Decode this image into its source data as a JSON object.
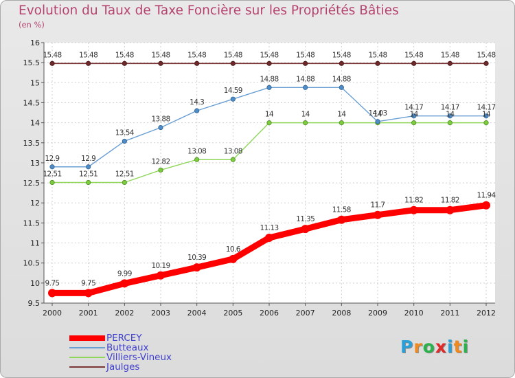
{
  "title": "Evolution du Taux de Taxe Foncière sur les Propriétés Bâties",
  "unit_label": "(en %)",
  "logo": {
    "letters": [
      "P",
      "r",
      "o",
      "x",
      "i",
      "t",
      "i"
    ],
    "colors": [
      "#2a9fd8",
      "#f08a1e",
      "#2bb24c",
      "#e02a2a",
      "#2a9fd8",
      "#f08a1e",
      "#2bb24c"
    ]
  },
  "chart_data": {
    "type": "line",
    "title": "Evolution du Taux de Taxe Foncière sur les Propriétés Bâties",
    "ylabel": "(en %)",
    "xlabel": "",
    "x": [
      "2000",
      "2001",
      "2002",
      "2003",
      "2004",
      "2005",
      "2006",
      "2007",
      "2008",
      "2009",
      "2010",
      "2011",
      "2012"
    ],
    "ylim": [
      9.5,
      16
    ],
    "yticks": [
      "9.5",
      "10",
      "10.5",
      "11",
      "11.5",
      "12",
      "12.5",
      "13",
      "13.5",
      "14",
      "14.5",
      "15",
      "15.5",
      "16"
    ],
    "grid": true,
    "legend_position": "bottom-left",
    "series": [
      {
        "name": "PERCEY",
        "color": "#ff0000",
        "values": [
          9.75,
          9.75,
          9.99,
          10.19,
          10.39,
          10.6,
          11.13,
          11.35,
          11.58,
          11.7,
          11.82,
          11.82,
          11.94
        ],
        "labels": [
          "9.75",
          "9.75",
          "9.99",
          "10.19",
          "10.39",
          "10.6",
          "11.13",
          "11.35",
          "11.58",
          "11.7",
          "11.82",
          "11.82",
          "11.94"
        ]
      },
      {
        "name": "Butteaux",
        "color": "#6a9fd4",
        "values": [
          12.9,
          12.9,
          13.54,
          13.88,
          14.3,
          14.59,
          14.88,
          14.88,
          14.88,
          14.03,
          14.17,
          14.17,
          14.17
        ],
        "labels": [
          "12.9",
          "12.9",
          "13.54",
          "13.88",
          "14.3",
          "14.59",
          "14.88",
          "14.88",
          "14.88",
          "14.03",
          "14.17",
          "14.17",
          "14.17"
        ]
      },
      {
        "name": "Villiers-Vineux",
        "color": "#8fd65a",
        "values": [
          12.51,
          12.51,
          12.51,
          12.82,
          13.08,
          13.08,
          14,
          14,
          14,
          14,
          14,
          14,
          14
        ],
        "labels": [
          "12.51",
          "12.51",
          "12.51",
          "12.82",
          "13.08",
          "13.08",
          "14",
          "14",
          "14",
          "14",
          "14",
          "14",
          "14"
        ]
      },
      {
        "name": "Jaulges",
        "color": "#7a3535",
        "values": [
          15.48,
          15.48,
          15.48,
          15.48,
          15.48,
          15.48,
          15.48,
          15.48,
          15.48,
          15.48,
          15.48,
          15.48,
          15.48
        ],
        "labels": [
          "15.48",
          "15.48",
          "15.48",
          "15.48",
          "15.48",
          "15.48",
          "15.48",
          "15.48",
          "15.48",
          "15.48",
          "15.48",
          "15.48",
          "15.48"
        ]
      }
    ]
  }
}
